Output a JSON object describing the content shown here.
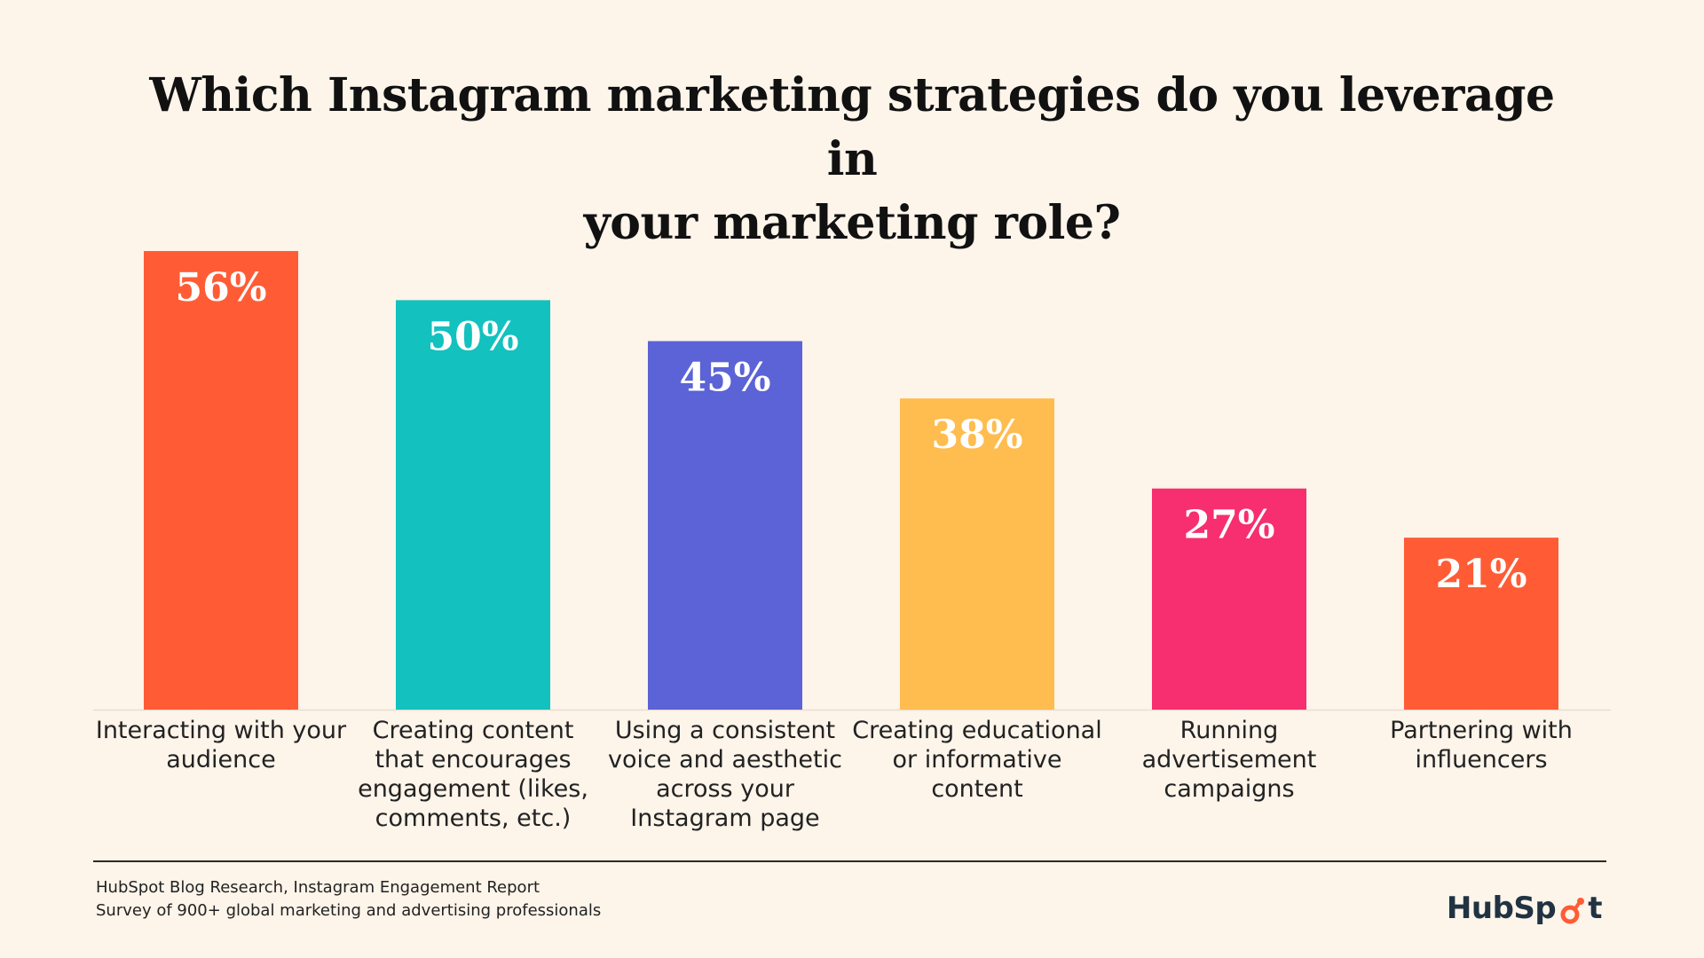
{
  "chart_data": {
    "type": "bar",
    "title_lines": [
      "Which Instagram marketing strategies do you leverage in",
      "your marketing role?"
    ],
    "categories": [
      [
        "Interacting with your",
        "audience"
      ],
      [
        "Creating content",
        "that encourages",
        "engagement (likes,",
        "comments, etc.)"
      ],
      [
        "Using a consistent",
        "voice and aesthetic",
        "across your",
        "Instagram page"
      ],
      [
        "Creating educational",
        "or informative",
        "content"
      ],
      [
        "Running",
        "advertisement",
        "campaigns"
      ],
      [
        "Partnering with",
        "influencers"
      ]
    ],
    "values": [
      56,
      50,
      45,
      38,
      27,
      21
    ],
    "value_labels": [
      "56%",
      "50%",
      "45%",
      "38%",
      "27%",
      "21%"
    ],
    "colors": [
      "#FF5C35",
      "#13C1BF",
      "#5B63D6",
      "#FFBC4F",
      "#F72E6F",
      "#FF5C35"
    ],
    "ylim": [
      0,
      56
    ],
    "xlabel": "",
    "ylabel": "",
    "grid": false,
    "legend": "none"
  },
  "source": {
    "line1": "HubSpot Blog Research, Instagram Engagement Report",
    "line2": "Survey of 900+ global marketing and advertising professionals"
  },
  "logo": {
    "text_before": "HubSp",
    "text_after": "t",
    "color": "#213343",
    "sprocket_color": "#FF5C35"
  },
  "colors": {
    "background": "#FDF4EA",
    "baseline": "#E8DDD1"
  }
}
